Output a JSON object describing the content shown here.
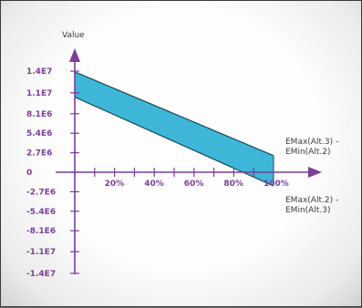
{
  "chart_data": {
    "type": "area",
    "ylabel": "Value",
    "x_ticks": [
      "20%",
      "40%",
      "60%",
      "80%",
      "100%"
    ],
    "y_ticks": [
      "1.4E7",
      "1.1E7",
      "8.1E6",
      "5.4E6",
      "2.7E6",
      "0",
      "-2.7E6",
      "-5.4E6",
      "-8.1E6",
      "-1.1E7",
      "-1.4E7"
    ],
    "y_tick_values": [
      14000000,
      11000000,
      8100000,
      5400000,
      2700000,
      0,
      -2700000,
      -5400000,
      -8100000,
      -11000000,
      -14000000
    ],
    "xlim": [
      0,
      100
    ],
    "ylim": [
      -14000000,
      14000000
    ],
    "band": {
      "x": [
        0,
        100
      ],
      "upper": [
        13900000,
        2300000
      ],
      "lower": [
        10400000,
        -1900000
      ]
    },
    "annotations": [
      {
        "lines": [
          "EMax(Alt.3) -",
          "EMin(Alt.2)"
        ],
        "attached_to": "upper"
      },
      {
        "lines": [
          "EMax(Alt.2) -",
          "EMin(Alt.3)"
        ],
        "attached_to": "lower"
      }
    ],
    "colors": {
      "axis": "#7b3f98",
      "band_fill": "#3db6d8",
      "band_stroke": "#1d4a5a"
    }
  }
}
